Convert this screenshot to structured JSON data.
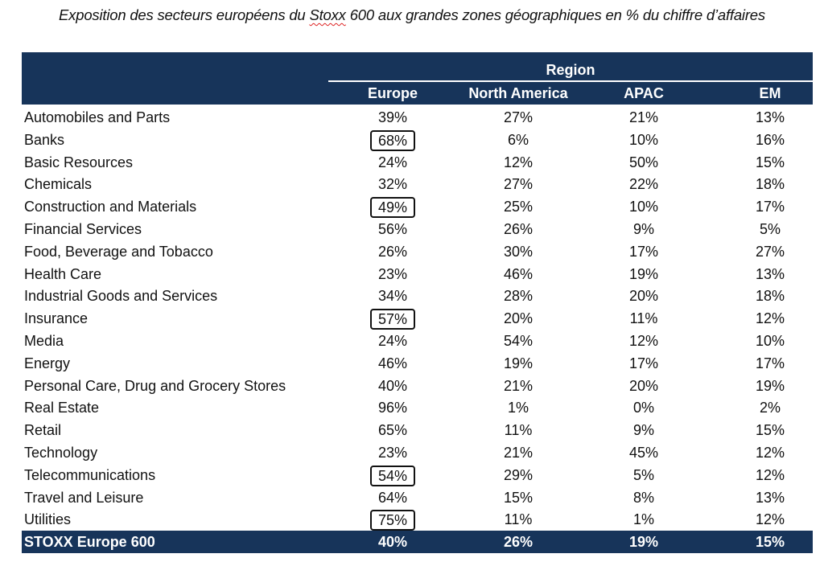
{
  "title_prefix": "Exposition des secteurs européens du ",
  "title_underlined": "Stoxx",
  "title_suffix": " 600 aux grandes zones géographiques en % du chiffre d’affaires",
  "header": {
    "group": "Region",
    "columns": [
      "Europe",
      "North America",
      "APAC",
      "EM"
    ]
  },
  "rows": [
    {
      "sector": "Automobiles and Parts",
      "values": [
        "39%",
        "27%",
        "21%",
        "13%"
      ],
      "highlight": false
    },
    {
      "sector": "Banks",
      "values": [
        "68%",
        "6%",
        "10%",
        "16%"
      ],
      "highlight": true
    },
    {
      "sector": "Basic Resources",
      "values": [
        "24%",
        "12%",
        "50%",
        "15%"
      ],
      "highlight": false
    },
    {
      "sector": "Chemicals",
      "values": [
        "32%",
        "27%",
        "22%",
        "18%"
      ],
      "highlight": false
    },
    {
      "sector": "Construction and Materials",
      "values": [
        "49%",
        "25%",
        "10%",
        "17%"
      ],
      "highlight": true
    },
    {
      "sector": "Financial Services",
      "values": [
        "56%",
        "26%",
        "9%",
        "5%"
      ],
      "highlight": false
    },
    {
      "sector": "Food, Beverage and Tobacco",
      "values": [
        "26%",
        "30%",
        "17%",
        "27%"
      ],
      "highlight": false
    },
    {
      "sector": "Health Care",
      "values": [
        "23%",
        "46%",
        "19%",
        "13%"
      ],
      "highlight": false
    },
    {
      "sector": "Industrial Goods and Services",
      "values": [
        "34%",
        "28%",
        "20%",
        "18%"
      ],
      "highlight": false
    },
    {
      "sector": "Insurance",
      "values": [
        "57%",
        "20%",
        "11%",
        "12%"
      ],
      "highlight": true
    },
    {
      "sector": "Media",
      "values": [
        "24%",
        "54%",
        "12%",
        "10%"
      ],
      "highlight": false
    },
    {
      "sector": "Energy",
      "values": [
        "46%",
        "19%",
        "17%",
        "17%"
      ],
      "highlight": false
    },
    {
      "sector": "Personal Care, Drug and Grocery Stores",
      "values": [
        "40%",
        "21%",
        "20%",
        "19%"
      ],
      "highlight": false
    },
    {
      "sector": "Real Estate",
      "values": [
        "96%",
        "1%",
        "0%",
        "2%"
      ],
      "highlight": false
    },
    {
      "sector": "Retail",
      "values": [
        "65%",
        "11%",
        "9%",
        "15%"
      ],
      "highlight": false
    },
    {
      "sector": "Technology",
      "values": [
        "23%",
        "21%",
        "45%",
        "12%"
      ],
      "highlight": false
    },
    {
      "sector": "Telecommunications",
      "values": [
        "54%",
        "29%",
        "5%",
        "12%"
      ],
      "highlight": true
    },
    {
      "sector": "Travel and Leisure",
      "values": [
        "64%",
        "15%",
        "8%",
        "13%"
      ],
      "highlight": false
    },
    {
      "sector": "Utilities",
      "values": [
        "75%",
        "11%",
        "1%",
        "12%"
      ],
      "highlight": true
    }
  ],
  "total": {
    "sector": "STOXX Europe 600",
    "values": [
      "40%",
      "26%",
      "19%",
      "15%"
    ]
  },
  "colors": {
    "header_bg": "#17345a"
  }
}
